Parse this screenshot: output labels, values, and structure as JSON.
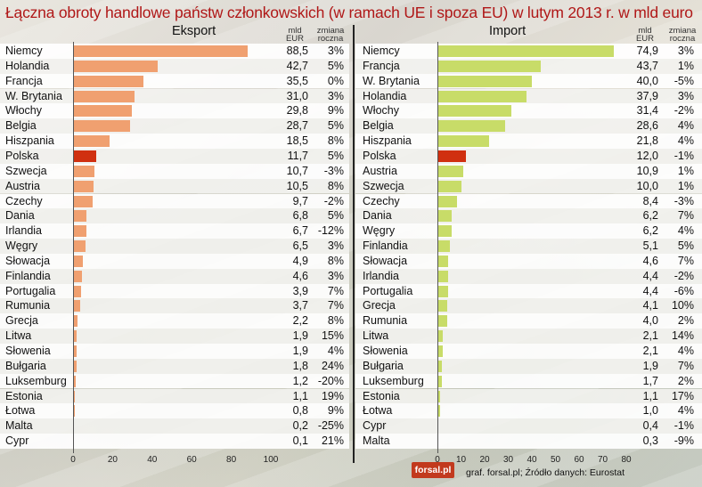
{
  "title": "Łączna obroty handlowe państw członkowskich (w ramach UE i spoza EU) w lutym 2013 r. w mld euro",
  "source": "graf. forsal.pl; Źródło danych: Eurostat",
  "logo": "forsal.pl",
  "colors": {
    "export_bar": "#f0a070",
    "import_bar": "#c8dc68",
    "highlight": "#d03010",
    "title": "#b01818"
  },
  "chart_data": [
    {
      "type": "bar",
      "orientation": "horizontal",
      "title": "Eksport",
      "value_header": "mld EUR",
      "change_header": "zmiana roczna",
      "highlight": "Polska",
      "xlim": [
        0,
        100
      ],
      "xticks": [
        "0",
        "20",
        "40",
        "60",
        "80",
        "100"
      ],
      "categories": [
        "Niemcy",
        "Holandia",
        "Francja",
        "W. Brytania",
        "Włochy",
        "Belgia",
        "Hiszpania",
        "Polska",
        "Szwecja",
        "Austria",
        "Czechy",
        "Dania",
        "Irlandia",
        "Węgry",
        "Słowacja",
        "Finlandia",
        "Portugalia",
        "Rumunia",
        "Grecja",
        "Litwa",
        "Słowenia",
        "Bułgaria",
        "Luksemburg",
        "Estonia",
        "Łotwa",
        "Malta",
        "Cypr"
      ],
      "values": [
        88.5,
        42.7,
        35.5,
        31.0,
        29.8,
        28.7,
        18.5,
        11.7,
        10.7,
        10.5,
        9.7,
        6.8,
        6.7,
        6.5,
        4.9,
        4.6,
        3.9,
        3.7,
        2.2,
        1.9,
        1.9,
        1.8,
        1.2,
        1.1,
        0.8,
        0.2,
        0.1
      ],
      "value_labels": [
        "88,5",
        "42,7",
        "35,5",
        "31,0",
        "29,8",
        "28,7",
        "18,5",
        "11,7",
        "10,7",
        "10,5",
        "9,7",
        "6,8",
        "6,7",
        "6,5",
        "4,9",
        "4,6",
        "3,9",
        "3,7",
        "2,2",
        "1,9",
        "1,9",
        "1,8",
        "1,2",
        "1,1",
        "0,8",
        "0,2",
        "0,1"
      ],
      "changes": [
        "3%",
        "5%",
        "0%",
        "3%",
        "9%",
        "5%",
        "8%",
        "5%",
        "-3%",
        "8%",
        "-2%",
        "5%",
        "-12%",
        "3%",
        "8%",
        "3%",
        "7%",
        "7%",
        "8%",
        "15%",
        "4%",
        "24%",
        "-20%",
        "19%",
        "9%",
        "-25%",
        "21%"
      ]
    },
    {
      "type": "bar",
      "orientation": "horizontal",
      "title": "Import",
      "value_header": "mld EUR",
      "change_header": "zmiana roczna",
      "highlight": "Polska",
      "xlim": [
        0,
        80
      ],
      "xticks": [
        "0",
        "10",
        "20",
        "30",
        "40",
        "50",
        "60",
        "70",
        "80"
      ],
      "categories": [
        "Niemcy",
        "Francja",
        "W. Brytania",
        "Holandia",
        "Włochy",
        "Belgia",
        "Hiszpania",
        "Polska",
        "Austria",
        "Szwecja",
        "Czechy",
        "Dania",
        "Węgry",
        "Finlandia",
        "Słowacja",
        "Irlandia",
        "Portugalia",
        "Grecja",
        "Rumunia",
        "Litwa",
        "Słowenia",
        "Bułgaria",
        "Luksemburg",
        "Estonia",
        "Łotwa",
        "Cypr",
        "Malta"
      ],
      "values": [
        74.9,
        43.7,
        40.0,
        37.9,
        31.4,
        28.6,
        21.8,
        12.0,
        10.9,
        10.0,
        8.4,
        6.2,
        6.2,
        5.1,
        4.6,
        4.4,
        4.4,
        4.1,
        4.0,
        2.1,
        2.1,
        1.9,
        1.7,
        1.1,
        1.0,
        0.4,
        0.3
      ],
      "value_labels": [
        "74,9",
        "43,7",
        "40,0",
        "37,9",
        "31,4",
        "28,6",
        "21,8",
        "12,0",
        "10,9",
        "10,0",
        "8,4",
        "6,2",
        "6,2",
        "5,1",
        "4,6",
        "4,4",
        "4,4",
        "4,1",
        "4,0",
        "2,1",
        "2,1",
        "1,9",
        "1,7",
        "1,1",
        "1,0",
        "0,4",
        "0,3"
      ],
      "changes": [
        "3%",
        "1%",
        "-5%",
        "3%",
        "-2%",
        "4%",
        "4%",
        "-1%",
        "1%",
        "1%",
        "-3%",
        "7%",
        "4%",
        "5%",
        "7%",
        "-2%",
        "-6%",
        "10%",
        "2%",
        "14%",
        "4%",
        "7%",
        "2%",
        "17%",
        "4%",
        "-1%",
        "-9%"
      ]
    }
  ]
}
